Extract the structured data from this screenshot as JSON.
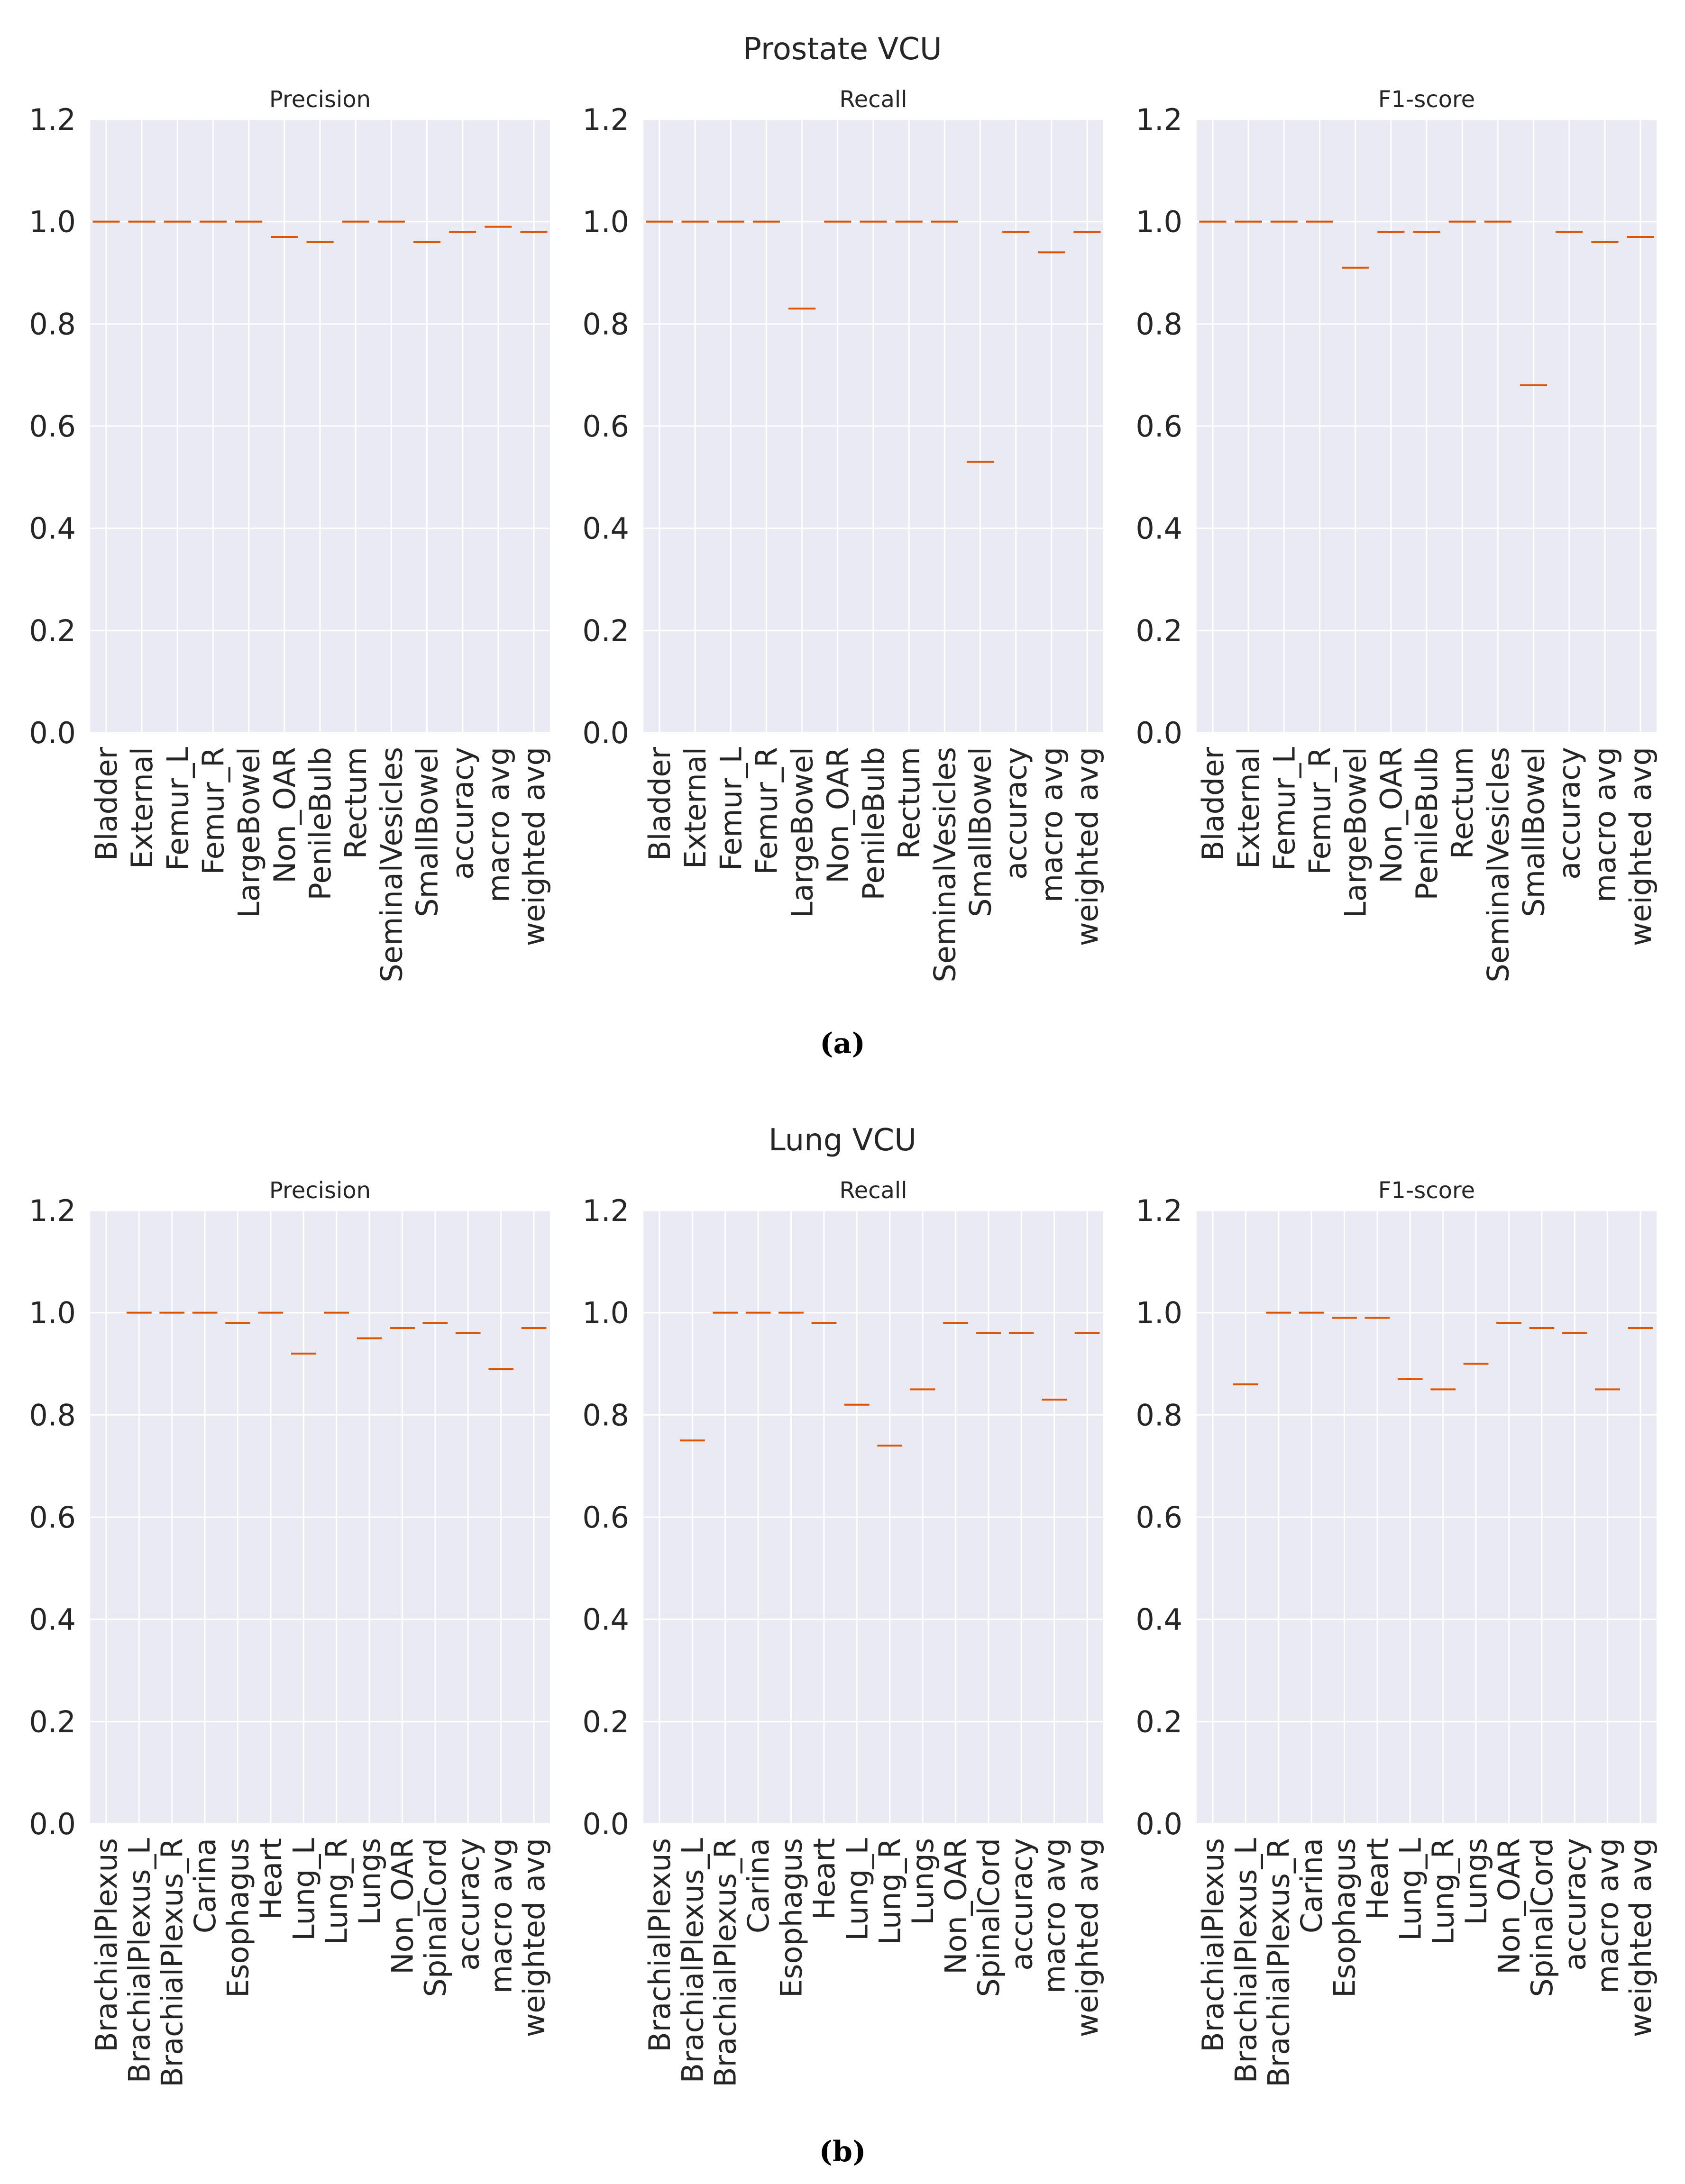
{
  "colors": {
    "plot_bg": "#EAEAF2",
    "grid": "#FFFFFF",
    "median": "#DD5500",
    "text": "#262626"
  },
  "chart_data": [
    {
      "type": "box",
      "figure_title": "Prostate VCU",
      "caption": "(a)",
      "categories": [
        "Bladder",
        "External",
        "Femur_L",
        "Femur_R",
        "LargeBowel",
        "Non_OAR",
        "PenileBulb",
        "Rectum",
        "SeminalVesicles",
        "SmallBowel",
        "accuracy",
        "macro avg",
        "weighted avg"
      ],
      "ylim": [
        0,
        1.2
      ],
      "yticks": [
        "0.0",
        "0.2",
        "0.4",
        "0.6",
        "0.8",
        "1.0",
        "1.2"
      ],
      "panels": [
        {
          "title": "Precision",
          "values": [
            1.0,
            1.0,
            1.0,
            1.0,
            1.0,
            0.97,
            0.96,
            1.0,
            1.0,
            0.96,
            0.98,
            0.99,
            0.98
          ]
        },
        {
          "title": "Recall",
          "values": [
            1.0,
            1.0,
            1.0,
            1.0,
            0.83,
            1.0,
            1.0,
            1.0,
            1.0,
            0.53,
            0.98,
            0.94,
            0.98
          ]
        },
        {
          "title": "F1-score",
          "values": [
            1.0,
            1.0,
            1.0,
            1.0,
            0.91,
            0.98,
            0.98,
            1.0,
            1.0,
            0.68,
            0.98,
            0.96,
            0.97
          ]
        }
      ]
    },
    {
      "type": "box",
      "figure_title": "Lung VCU",
      "caption": "(b)",
      "categories": [
        "BrachialPlexus",
        "BrachialPlexus_L",
        "BrachialPlexus_R",
        "Carina",
        "Esophagus",
        "Heart",
        "Lung_L",
        "Lung_R",
        "Lungs",
        "Non_OAR",
        "SpinalCord",
        "accuracy",
        "macro avg",
        "weighted avg"
      ],
      "ylim": [
        0,
        1.2
      ],
      "yticks": [
        "0.0",
        "0.2",
        "0.4",
        "0.6",
        "0.8",
        "1.0",
        "1.2"
      ],
      "panels": [
        {
          "title": "Precision",
          "values": [
            null,
            1.0,
            1.0,
            1.0,
            0.98,
            1.0,
            0.92,
            1.0,
            0.95,
            0.97,
            0.98,
            0.96,
            0.89,
            0.97
          ]
        },
        {
          "title": "Recall",
          "values": [
            null,
            0.75,
            1.0,
            1.0,
            1.0,
            0.98,
            0.82,
            0.74,
            0.85,
            0.98,
            0.96,
            0.96,
            0.83,
            0.96
          ]
        },
        {
          "title": "F1-score",
          "values": [
            null,
            0.86,
            1.0,
            1.0,
            0.99,
            0.99,
            0.87,
            0.85,
            0.9,
            0.98,
            0.97,
            0.96,
            0.85,
            0.97
          ]
        }
      ]
    }
  ]
}
